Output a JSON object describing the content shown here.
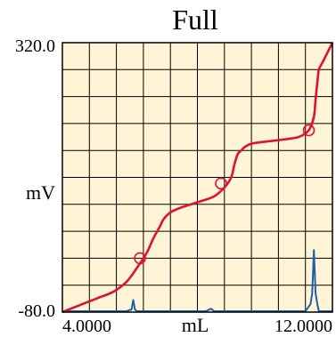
{
  "chart_data": {
    "type": "line",
    "title": "Full",
    "xlabel": "mL",
    "ylabel": "mV",
    "xlim": [
      4.0,
      12.0
    ],
    "ylim": [
      -80.0,
      320.0
    ],
    "x_tick_labels": [
      "4.0000",
      "12.0000"
    ],
    "y_tick_labels": [
      "320.0",
      "-80.0"
    ],
    "grid": true,
    "colors": {
      "background": "#fff4d6",
      "grid": "#000000",
      "titration_curve": "#dd1133",
      "derivative_curve": "#1f5fa8",
      "markers": "#dd1133"
    },
    "series": [
      {
        "role": "titration",
        "x": [
          4.0,
          4.5,
          5.0,
          5.5,
          5.9,
          6.2,
          6.5,
          6.7,
          6.9,
          7.0,
          7.2,
          7.5,
          8.0,
          8.5,
          8.8,
          9.0,
          9.1,
          9.2,
          9.3,
          9.4,
          9.6,
          10.0,
          10.5,
          11.0,
          11.3,
          11.45,
          11.5,
          11.55,
          11.6,
          11.7,
          11.8,
          12.0
        ],
        "y": [
          -80,
          -70,
          -60,
          -50,
          -35,
          -15,
          8,
          30,
          48,
          58,
          68,
          75,
          83,
          92,
          105,
          120,
          140,
          155,
          160,
          165,
          170,
          173,
          176,
          180,
          190,
          210,
          235,
          260,
          280,
          290,
          300,
          320
        ]
      },
      {
        "role": "derivative",
        "x": [
          4.0,
          5.6,
          5.9,
          6.05,
          6.1,
          6.15,
          6.2,
          6.35,
          6.6,
          7.5,
          8.25,
          8.4,
          8.5,
          8.6,
          8.8,
          10.0,
          11.2,
          11.35,
          11.4,
          11.45,
          11.5,
          11.55,
          11.6,
          11.7,
          11.9,
          12.0
        ],
        "y": [
          -82,
          -82,
          -79,
          -76,
          -62,
          -76,
          -79,
          -82,
          -82,
          -82,
          -80,
          -75,
          -80,
          -82,
          -82,
          -82,
          -80,
          -68,
          -52,
          12,
          -52,
          -68,
          -79,
          -82,
          -82,
          -82
        ]
      }
    ],
    "markers": [
      {
        "x": 6.3,
        "y": 0
      },
      {
        "x": 8.7,
        "y": 111
      },
      {
        "x": 11.3,
        "y": 190
      }
    ]
  }
}
